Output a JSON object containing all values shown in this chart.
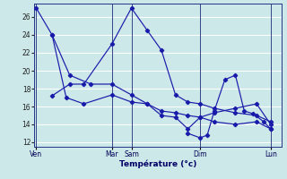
{
  "xlabel": "Température (°c)",
  "bg_color": "#cce8e8",
  "grid_color": "#ffffff",
  "line_color": "#1a1aaa",
  "ylim": [
    11.5,
    27.5
  ],
  "yticks": [
    12,
    14,
    16,
    18,
    20,
    22,
    24,
    26
  ],
  "xlim": [
    0,
    7.0
  ],
  "day_x": [
    0.05,
    2.2,
    2.75,
    4.7,
    6.7
  ],
  "day_labels": [
    "Ven",
    "Mar",
    "Sam",
    "Dim",
    "Lun"
  ],
  "vline_x": [
    0.05,
    2.2,
    2.75,
    4.7,
    6.7
  ],
  "series1_x": [
    0.05,
    0.5,
    1.0,
    1.6,
    2.2,
    2.75,
    3.2,
    3.6,
    4.0,
    4.35,
    4.7,
    5.1,
    5.7,
    6.3,
    6.7
  ],
  "series1_y": [
    27.0,
    24.0,
    19.5,
    18.5,
    18.5,
    17.3,
    16.3,
    15.5,
    15.3,
    15.0,
    14.8,
    14.3,
    14.0,
    14.3,
    13.5
  ],
  "series2_x": [
    0.5,
    1.0,
    1.4,
    2.2,
    2.75,
    3.2,
    3.6,
    4.0,
    4.35,
    4.7,
    5.1,
    5.7,
    6.3,
    6.7
  ],
  "series2_y": [
    17.2,
    18.5,
    18.5,
    23.0,
    27.0,
    24.5,
    22.3,
    17.3,
    16.5,
    16.3,
    15.8,
    15.3,
    15.0,
    14.3
  ],
  "series3_x": [
    0.5,
    0.9,
    1.4,
    2.2,
    2.75,
    3.2,
    3.6,
    4.0,
    4.35,
    4.7,
    5.1,
    5.7,
    6.3,
    6.7
  ],
  "series3_y": [
    24.0,
    17.0,
    16.3,
    17.3,
    16.5,
    16.3,
    15.0,
    14.8,
    13.5,
    14.8,
    15.3,
    15.8,
    16.3,
    14.0
  ],
  "series4_x": [
    4.35,
    4.7,
    4.9,
    5.1,
    5.4,
    5.7,
    5.95,
    6.2,
    6.5,
    6.7
  ],
  "series4_y": [
    13.0,
    12.5,
    12.8,
    15.5,
    19.0,
    19.5,
    15.5,
    15.2,
    14.3,
    13.5
  ]
}
